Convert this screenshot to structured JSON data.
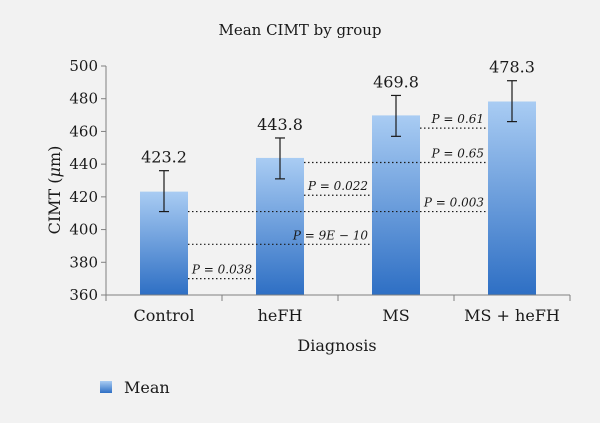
{
  "chart_data": {
    "type": "bar",
    "title": "Mean CIMT by group",
    "xlabel": "Diagnosis",
    "ylabel": "CIMT (μm)",
    "ylim": [
      360,
      500
    ],
    "yticks": [
      360,
      380,
      400,
      420,
      440,
      460,
      480,
      500
    ],
    "categories": [
      "Control",
      "heFH",
      "MS",
      "MS + heFH"
    ],
    "series": [
      {
        "name": "Mean",
        "values": [
          423.2,
          443.8,
          469.8,
          478.3
        ],
        "error_low": [
          411,
          431,
          457,
          466
        ],
        "error_high": [
          436,
          456,
          482,
          491
        ]
      }
    ],
    "data_labels": [
      "423.2",
      "443.8",
      "469.8",
      "478.3"
    ],
    "annotations": [
      {
        "text": "P = 0.61",
        "from": 2,
        "to": 3,
        "y": 462
      },
      {
        "text": "P = 0.65",
        "from": 1,
        "to": 3,
        "y": 441
      },
      {
        "text": "P = 0.022",
        "from": 1,
        "to": 2,
        "y": 421
      },
      {
        "text": "P = 0.003",
        "from": 0,
        "to": 3,
        "y": 411
      },
      {
        "text": "P = 9E − 10",
        "from": 0,
        "to": 2,
        "y": 391
      },
      {
        "text": "P = 0.038",
        "from": 0,
        "to": 1,
        "y": 370
      }
    ],
    "grid": false,
    "legend": "bottom-left",
    "colors": {
      "bar_top": "#a9ccf3",
      "bar_bottom": "#2e6fc4",
      "axis": "#808080",
      "background": "#f2f2f2"
    }
  }
}
